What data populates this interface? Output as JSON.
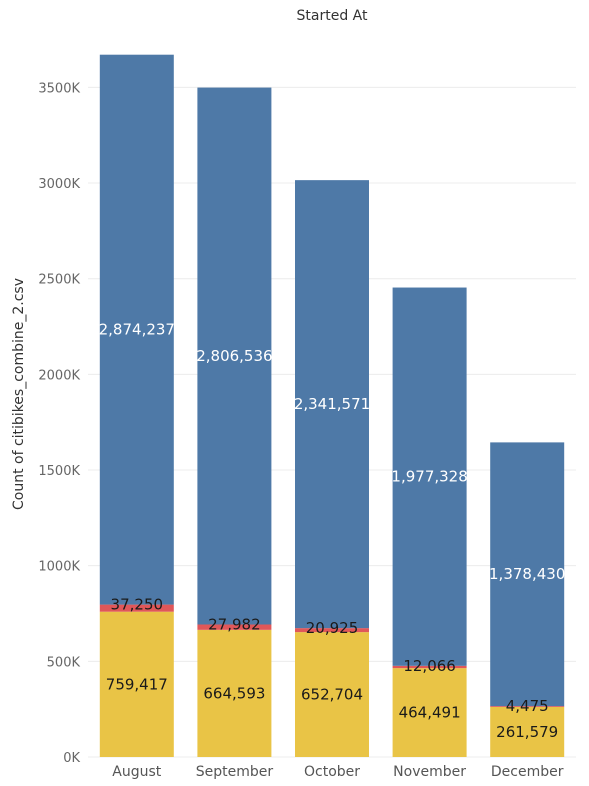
{
  "chart_data": {
    "type": "bar",
    "stacked": true,
    "title": "Started At",
    "xlabel": "",
    "ylabel": "Count of citibikes_combine_2.csv",
    "ylim": [
      0,
      3800000
    ],
    "yticks": [
      0,
      500000,
      1000000,
      1500000,
      2000000,
      2500000,
      3000000,
      3500000
    ],
    "ytick_labels": [
      "0K",
      "500K",
      "1000K",
      "1500K",
      "2000K",
      "2500K",
      "3000K",
      "3500K"
    ],
    "grid": true,
    "categories": [
      "August",
      "September",
      "October",
      "November",
      "December"
    ],
    "series": [
      {
        "values": [
          759417,
          664593,
          652704,
          464491,
          261579
        ],
        "labels": [
          "759,417",
          "664,593",
          "652,704",
          "464,491",
          "261,579"
        ],
        "color": "#e9c446",
        "label_color": "#1a1a1a"
      },
      {
        "values": [
          37250,
          27982,
          20925,
          12066,
          4475
        ],
        "labels": [
          "37,250",
          "27,982",
          "20,925",
          "12,066",
          "4,475"
        ],
        "color": "#e05759",
        "label_color": "#1a1a1a"
      },
      {
        "values": [
          2874237,
          2806536,
          2341571,
          1977328,
          1378430
        ],
        "labels": [
          "2,874,237",
          "2,806,536",
          "2,341,571",
          "1,977,328",
          "1,378,430"
        ],
        "color": "#4e79a7",
        "label_color": "#ffffff"
      }
    ]
  }
}
